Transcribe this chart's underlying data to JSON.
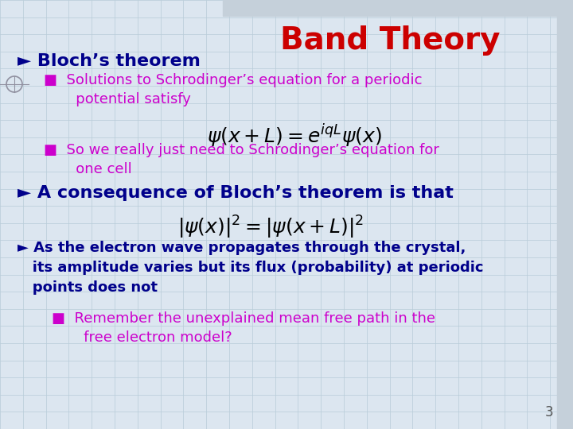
{
  "title": "Band Theory",
  "title_color": "#CC0000",
  "title_fontsize": 28,
  "background_color": "#dce6f0",
  "grid_color": "#b8ccd8",
  "bullet1_text": "► Bloch’s theorem",
  "bullet1_color": "#00008B",
  "bullet1_fontsize": 16,
  "sub1_text": "■  Solutions to Schrodinger’s equation for a periodic\n       potential satisfy",
  "sub1_color": "#CC00CC",
  "sub1_fontsize": 13,
  "eq1": "$\\psi(x+L) = e^{iqL}\\psi(x)$",
  "eq1_color": "#000000",
  "eq1_fontsize": 18,
  "sub2_text": "■  So we really just need to Schrodinger’s equation for\n       one cell",
  "sub2_color": "#CC00CC",
  "sub2_fontsize": 13,
  "bullet2_text": "► A consequence of Bloch’s theorem is that",
  "bullet2_color": "#00008B",
  "bullet2_fontsize": 16,
  "eq2": "$|\\psi(x)|^2 = |\\psi(x+L)|^2$",
  "eq2_color": "#000000",
  "eq2_fontsize": 18,
  "bullet3_text": "► As the electron wave propagates through the crystal,\n   its amplitude varies but its flux (probability) at periodic\n   points does not",
  "bullet3_color": "#00008B",
  "bullet3_fontsize": 13,
  "sub3_text": "■  Remember the unexplained mean free path in the\n       free electron model?",
  "sub3_color": "#CC00CC",
  "sub3_fontsize": 13,
  "page_num": "3",
  "page_num_color": "#555555",
  "header_bar_color": "#b0bec5",
  "right_bar_color": "#b0bec5"
}
